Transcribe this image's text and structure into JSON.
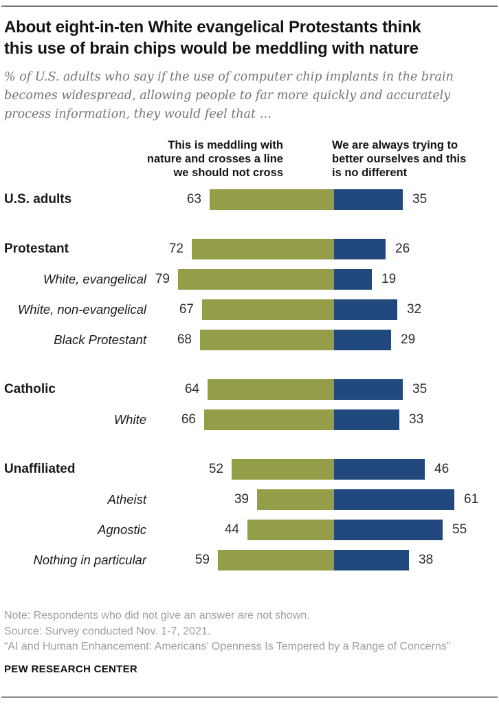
{
  "header": {
    "title": "About eight-in-ten White evangelical Protestants think this use of brain chips would be meddling with nature",
    "title_lines": [
      "About eight-in-ten White evangelical Protestants think",
      "this use of brain chips would be meddling with nature"
    ],
    "subtitle": "% of U.S. adults who say if the use of computer chip implants in the brain becomes widespread, allowing people to far more quickly and accurately process information, they would feel that …",
    "subtitle_lines": [
      "% of U.S. adults who say if the use of computer chip implants in the brain",
      "becomes widespread, allowing people to far more quickly and accurately",
      "process information, they would feel that …"
    ]
  },
  "chart_data": {
    "type": "bar",
    "variant": "horizontal-diverging-stacked",
    "unit": "% of U.S. adults",
    "colors": {
      "meddling": "#949D48",
      "better": "#21497E"
    },
    "legend": {
      "left": {
        "text": "This is meddling with nature and crosses a line we should not cross",
        "lines": [
          "This is meddling with",
          "nature and crosses a line",
          "we should not cross"
        ]
      },
      "right": {
        "text": "We are always trying to better ourselves and this is no different",
        "lines": [
          "We are always trying to",
          "better ourselves and this",
          "is no different"
        ]
      }
    },
    "groups": [
      {
        "rows": [
          {
            "label": "U.S. adults",
            "emphasis": "bold",
            "meddling": 63,
            "better": 35
          }
        ]
      },
      {
        "rows": [
          {
            "label": "Protestant",
            "emphasis": "bold",
            "meddling": 72,
            "better": 26
          },
          {
            "label": "White, evangelical",
            "emphasis": "italic",
            "meddling": 79,
            "better": 19
          },
          {
            "label": "White, non-evangelical",
            "emphasis": "italic",
            "meddling": 67,
            "better": 32
          },
          {
            "label": "Black Protestant",
            "emphasis": "italic",
            "meddling": 68,
            "better": 29
          }
        ]
      },
      {
        "rows": [
          {
            "label": "Catholic",
            "emphasis": "bold",
            "meddling": 64,
            "better": 35
          },
          {
            "label": "White",
            "emphasis": "italic",
            "meddling": 66,
            "better": 33
          }
        ]
      },
      {
        "rows": [
          {
            "label": "Unaffiliated",
            "emphasis": "bold",
            "meddling": 52,
            "better": 46
          },
          {
            "label": "Atheist",
            "emphasis": "italic",
            "meddling": 39,
            "better": 61
          },
          {
            "label": "Agnostic",
            "emphasis": "italic",
            "meddling": 44,
            "better": 55
          },
          {
            "label": "Nothing in particular",
            "emphasis": "italic",
            "meddling": 59,
            "better": 38
          }
        ]
      }
    ]
  },
  "footer": {
    "note": "Note: Respondents who did not give an answer are not shown.",
    "source": "Source: Survey conducted Nov. 1-7, 2021.",
    "report": "“AI and Human Enhancement: Americans’ Openness Is Tempered by a Range of Concerns”",
    "brand": "PEW RESEARCH CENTER"
  }
}
